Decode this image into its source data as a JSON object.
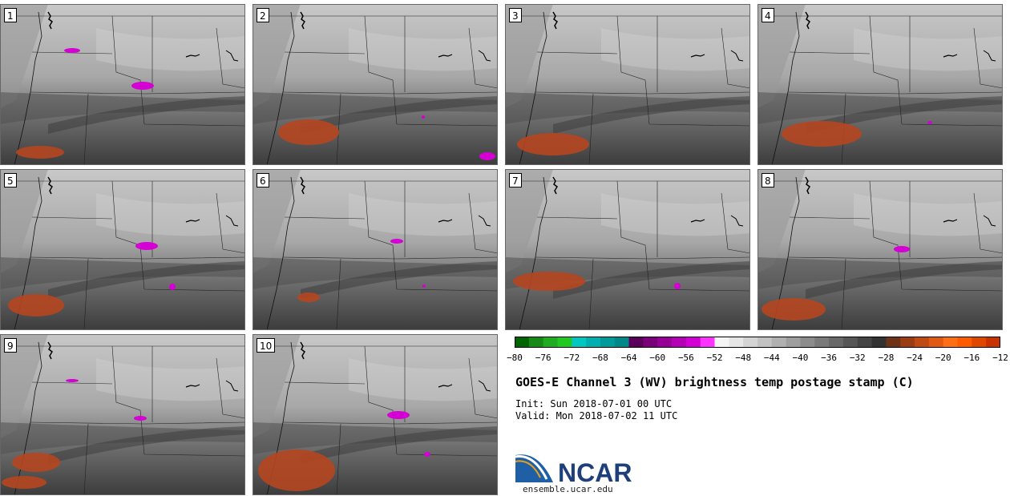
{
  "figure": {
    "title": "GOES-E Channel 3 (WV) brightness temp postage stamp (C)",
    "init": "Init: Sun 2018-07-01 00 UTC",
    "valid": "Valid: Mon 2018-07-02 11 UTC",
    "logo_text": "NCAR",
    "logo_url": "ensemble.ucar.edu"
  },
  "panels": [
    "1",
    "2",
    "3",
    "4",
    "5",
    "6",
    "7",
    "8",
    "9",
    "10"
  ],
  "colorbar": {
    "ticks": [
      "−80",
      "−76",
      "−72",
      "−68",
      "−64",
      "−60",
      "−56",
      "−52",
      "−48",
      "−44",
      "−40",
      "−36",
      "−32",
      "−28",
      "−24",
      "−20",
      "−16",
      "−12"
    ],
    "colors": [
      "#006400",
      "#168a16",
      "#20ac20",
      "#20c820",
      "#00c8c0",
      "#00b0b0",
      "#009a9a",
      "#008787",
      "#5a005a",
      "#7a007a",
      "#960096",
      "#b400b4",
      "#d200d2",
      "#ff33ff",
      "#f5f5f5",
      "#e6e6e6",
      "#d4d4d4",
      "#c2c2c2",
      "#b0b0b0",
      "#9e9e9e",
      "#8c8c8c",
      "#7a7a7a",
      "#686868",
      "#565656",
      "#444444",
      "#323232",
      "#6e3216",
      "#9a3c14",
      "#c04a14",
      "#e05a14",
      "#ff6e14",
      "#ff5a00",
      "#e04800",
      "#c83200"
    ]
  },
  "map_colors": {
    "cold_moist": "#d400d4",
    "warm_dry": "#b5461f",
    "border": "#000000"
  }
}
